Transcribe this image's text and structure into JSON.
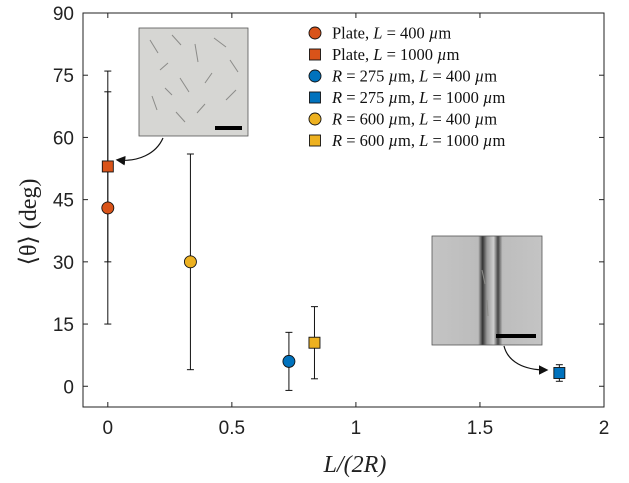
{
  "chart_data": {
    "type": "scatter",
    "xlabel": "L/(2R)",
    "ylabel": "⟨θ⟩ (deg)",
    "xlim": [
      -0.1,
      2.0
    ],
    "ylim": [
      -5,
      90
    ],
    "xticks": [
      0,
      0.5,
      1,
      1.5,
      2
    ],
    "xtick_labels": [
      "0",
      "0.5",
      "1",
      "1.5",
      "2"
    ],
    "yticks": [
      0,
      15,
      30,
      45,
      60,
      75,
      90
    ],
    "ytick_labels": [
      "0",
      "15",
      "30",
      "45",
      "60",
      "75",
      "90"
    ],
    "grid": false,
    "legend_position": "top-right",
    "series": [
      {
        "name": "Plate, L = 400 µm",
        "label_parts": [
          "Plate, ",
          "L",
          " = 400 ",
          "µ",
          "m"
        ],
        "marker": "circle",
        "color": "#D95319",
        "points": [
          {
            "x": 0,
            "y": 43,
            "err_low": 28,
            "err_high": 28
          }
        ]
      },
      {
        "name": "Plate, L = 1000 µm",
        "label_parts": [
          "Plate, ",
          "L",
          " = 1000 ",
          "µ",
          "m"
        ],
        "marker": "square",
        "color": "#D95319",
        "points": [
          {
            "x": 0,
            "y": 53,
            "err_low": 23,
            "err_high": 23
          }
        ]
      },
      {
        "name": "R = 275 µm, L = 400 µm",
        "label_parts": [
          "",
          "R",
          " = 275 ",
          "µ",
          "m, ",
          "L",
          " = 400 ",
          "µ",
          "m"
        ],
        "marker": "circle",
        "color": "#0072BD",
        "points": [
          {
            "x": 0.73,
            "y": 6,
            "err_low": 7,
            "err_high": 7
          }
        ]
      },
      {
        "name": "R = 275 µm, L = 1000 µm",
        "label_parts": [
          "",
          "R",
          " = 275 ",
          "µ",
          "m, ",
          "L",
          " = 1000 ",
          "µ",
          "m"
        ],
        "marker": "square",
        "color": "#0072BD",
        "points": [
          {
            "x": 1.82,
            "y": 3.2,
            "err_low": 2,
            "err_high": 2
          }
        ]
      },
      {
        "name": "R = 600 µm, L = 400 µm",
        "label_parts": [
          "",
          "R",
          " = 600 ",
          "µ",
          "m, ",
          "L",
          " = 400 ",
          "µ",
          "m"
        ],
        "marker": "circle",
        "color": "#EDB120",
        "points": [
          {
            "x": 0.333,
            "y": 30,
            "err_low": 26,
            "err_high": 26
          }
        ]
      },
      {
        "name": "R = 600 µm, L = 1000 µm",
        "label_parts": [
          "",
          "R",
          " = 600 ",
          "µ",
          "m, ",
          "L",
          " = 1000 ",
          "µ",
          "m"
        ],
        "marker": "square",
        "color": "#EDB120",
        "points": [
          {
            "x": 0.833,
            "y": 10.5,
            "err_low": 8.7,
            "err_high": 8.7
          }
        ]
      }
    ],
    "insets": [
      {
        "name": "plate-inset",
        "description": "grey micrograph of rods scattered on a flat plate with a black scale bar",
        "points_to_series": 1
      },
      {
        "name": "capillary-inset",
        "description": "grey micrograph of rods aligned inside a cylindrical channel with a black scale bar",
        "points_to_series": 3
      }
    ]
  }
}
